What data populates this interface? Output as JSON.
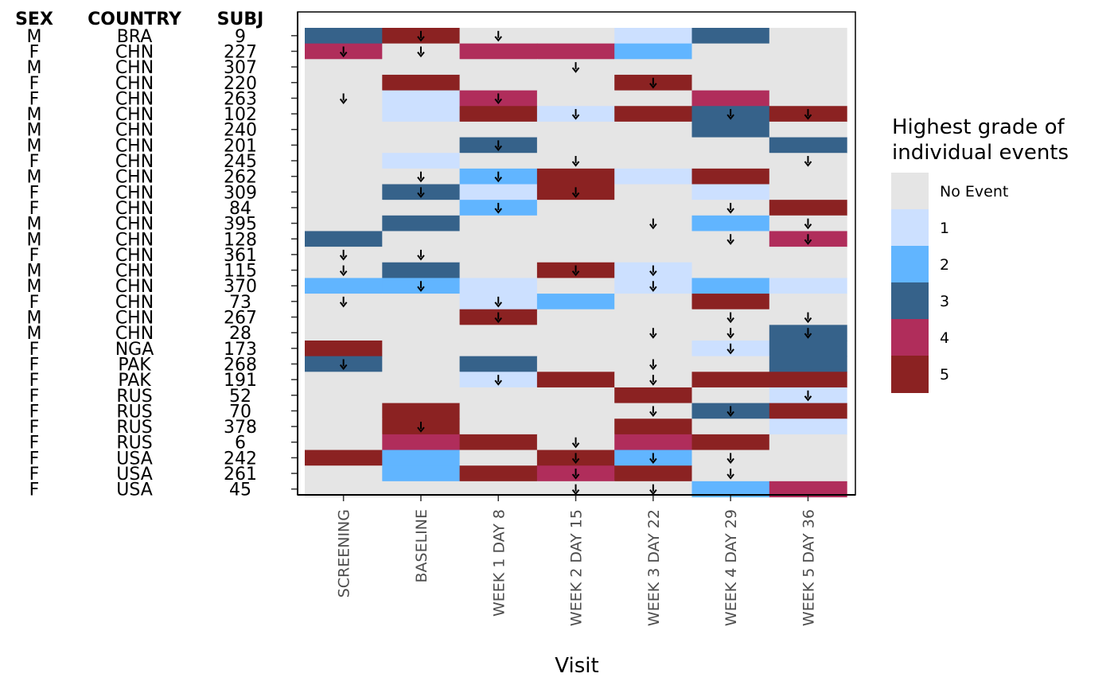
{
  "chart_data": {
    "type": "heatmap",
    "xlabel": "Visit",
    "x_categories": [
      "SCREENING",
      "BASELINE",
      "WEEK 1 DAY 8",
      "WEEK 2 DAY 15",
      "WEEK 3 DAY 22",
      "WEEK 4 DAY 29",
      "WEEK 5 DAY 36"
    ],
    "table_headers": {
      "sex": "SEX",
      "country": "COUNTRY",
      "subject": "SUBJ"
    },
    "rows": [
      {
        "sex": "M",
        "country": "BRA",
        "subject": "9",
        "grades": [
          3,
          5,
          0,
          0,
          1,
          3,
          0
        ],
        "markers": [
          0,
          1,
          1,
          0,
          0,
          0,
          0
        ]
      },
      {
        "sex": "F",
        "country": "CHN",
        "subject": "227",
        "grades": [
          4,
          0,
          4,
          4,
          2,
          0,
          0
        ],
        "markers": [
          1,
          1,
          0,
          0,
          0,
          0,
          0
        ]
      },
      {
        "sex": "M",
        "country": "CHN",
        "subject": "307",
        "grades": [
          0,
          0,
          0,
          0,
          0,
          0,
          0
        ],
        "markers": [
          0,
          0,
          0,
          1,
          0,
          0,
          0
        ]
      },
      {
        "sex": "F",
        "country": "CHN",
        "subject": "220",
        "grades": [
          0,
          5,
          0,
          0,
          5,
          0,
          0
        ],
        "markers": [
          0,
          0,
          0,
          0,
          1,
          0,
          0
        ]
      },
      {
        "sex": "F",
        "country": "CHN",
        "subject": "263",
        "grades": [
          0,
          1,
          4,
          0,
          0,
          4,
          0
        ],
        "markers": [
          1,
          0,
          1,
          0,
          0,
          0,
          0
        ]
      },
      {
        "sex": "M",
        "country": "CHN",
        "subject": "102",
        "grades": [
          0,
          1,
          5,
          1,
          5,
          3,
          5
        ],
        "markers": [
          0,
          0,
          0,
          1,
          0,
          1,
          1
        ]
      },
      {
        "sex": "M",
        "country": "CHN",
        "subject": "240",
        "grades": [
          0,
          0,
          0,
          0,
          0,
          3,
          0
        ],
        "markers": [
          0,
          0,
          0,
          0,
          0,
          0,
          0
        ]
      },
      {
        "sex": "M",
        "country": "CHN",
        "subject": "201",
        "grades": [
          0,
          0,
          3,
          0,
          0,
          0,
          3
        ],
        "markers": [
          0,
          0,
          1,
          0,
          0,
          0,
          0
        ]
      },
      {
        "sex": "F",
        "country": "CHN",
        "subject": "245",
        "grades": [
          0,
          1,
          0,
          0,
          0,
          0,
          0
        ],
        "markers": [
          0,
          0,
          0,
          1,
          0,
          0,
          1
        ]
      },
      {
        "sex": "M",
        "country": "CHN",
        "subject": "262",
        "grades": [
          0,
          0,
          2,
          5,
          1,
          5,
          0
        ],
        "markers": [
          0,
          1,
          1,
          0,
          0,
          0,
          0
        ]
      },
      {
        "sex": "F",
        "country": "CHN",
        "subject": "309",
        "grades": [
          0,
          3,
          1,
          5,
          0,
          1,
          0
        ],
        "markers": [
          0,
          1,
          0,
          1,
          0,
          0,
          0
        ]
      },
      {
        "sex": "F",
        "country": "CHN",
        "subject": "84",
        "grades": [
          0,
          0,
          2,
          0,
          0,
          0,
          5
        ],
        "markers": [
          0,
          0,
          1,
          0,
          0,
          1,
          0
        ]
      },
      {
        "sex": "M",
        "country": "CHN",
        "subject": "395",
        "grades": [
          0,
          3,
          0,
          0,
          0,
          2,
          0
        ],
        "markers": [
          0,
          0,
          0,
          0,
          1,
          0,
          1
        ]
      },
      {
        "sex": "M",
        "country": "CHN",
        "subject": "128",
        "grades": [
          3,
          0,
          0,
          0,
          0,
          0,
          4
        ],
        "markers": [
          0,
          0,
          0,
          0,
          0,
          1,
          1
        ]
      },
      {
        "sex": "F",
        "country": "CHN",
        "subject": "361",
        "grades": [
          0,
          0,
          0,
          0,
          0,
          0,
          0
        ],
        "markers": [
          1,
          1,
          0,
          0,
          0,
          0,
          0
        ]
      },
      {
        "sex": "M",
        "country": "CHN",
        "subject": "115",
        "grades": [
          0,
          3,
          0,
          5,
          1,
          0,
          0
        ],
        "markers": [
          1,
          0,
          0,
          1,
          1,
          0,
          0
        ]
      },
      {
        "sex": "M",
        "country": "CHN",
        "subject": "370",
        "grades": [
          2,
          2,
          1,
          0,
          1,
          2,
          1
        ],
        "markers": [
          0,
          1,
          0,
          0,
          1,
          0,
          0
        ]
      },
      {
        "sex": "F",
        "country": "CHN",
        "subject": "73",
        "grades": [
          0,
          0,
          1,
          2,
          0,
          5,
          0
        ],
        "markers": [
          1,
          0,
          1,
          0,
          0,
          0,
          0
        ]
      },
      {
        "sex": "M",
        "country": "CHN",
        "subject": "267",
        "grades": [
          0,
          0,
          5,
          0,
          0,
          0,
          0
        ],
        "markers": [
          0,
          0,
          1,
          0,
          0,
          1,
          1
        ]
      },
      {
        "sex": "M",
        "country": "CHN",
        "subject": "28",
        "grades": [
          0,
          0,
          0,
          0,
          0,
          0,
          3
        ],
        "markers": [
          0,
          0,
          0,
          0,
          1,
          1,
          1
        ]
      },
      {
        "sex": "F",
        "country": "NGA",
        "subject": "173",
        "grades": [
          5,
          0,
          0,
          0,
          0,
          1,
          3
        ],
        "markers": [
          0,
          0,
          0,
          0,
          0,
          1,
          0
        ]
      },
      {
        "sex": "F",
        "country": "PAK",
        "subject": "268",
        "grades": [
          3,
          0,
          3,
          0,
          0,
          0,
          3
        ],
        "markers": [
          1,
          0,
          0,
          0,
          1,
          0,
          0
        ]
      },
      {
        "sex": "F",
        "country": "PAK",
        "subject": "191",
        "grades": [
          0,
          0,
          1,
          5,
          0,
          5,
          5
        ],
        "markers": [
          0,
          0,
          1,
          0,
          1,
          0,
          0
        ]
      },
      {
        "sex": "F",
        "country": "RUS",
        "subject": "52",
        "grades": [
          0,
          0,
          0,
          0,
          5,
          0,
          1
        ],
        "markers": [
          0,
          0,
          0,
          0,
          0,
          0,
          1
        ]
      },
      {
        "sex": "F",
        "country": "RUS",
        "subject": "70",
        "grades": [
          0,
          5,
          0,
          0,
          0,
          3,
          5
        ],
        "markers": [
          0,
          0,
          0,
          0,
          1,
          1,
          0
        ]
      },
      {
        "sex": "F",
        "country": "RUS",
        "subject": "378",
        "grades": [
          0,
          5,
          0,
          0,
          5,
          0,
          1
        ],
        "markers": [
          0,
          1,
          0,
          0,
          0,
          0,
          0
        ]
      },
      {
        "sex": "F",
        "country": "RUS",
        "subject": "6",
        "grades": [
          0,
          4,
          5,
          0,
          4,
          5,
          0
        ],
        "markers": [
          0,
          0,
          0,
          1,
          0,
          0,
          0
        ]
      },
      {
        "sex": "F",
        "country": "USA",
        "subject": "242",
        "grades": [
          5,
          2,
          0,
          5,
          2,
          0,
          0
        ],
        "markers": [
          0,
          0,
          0,
          1,
          1,
          1,
          0
        ]
      },
      {
        "sex": "F",
        "country": "USA",
        "subject": "261",
        "grades": [
          0,
          2,
          5,
          4,
          5,
          0,
          0
        ],
        "markers": [
          0,
          0,
          0,
          1,
          0,
          1,
          0
        ]
      },
      {
        "sex": "F",
        "country": "USA",
        "subject": "45",
        "grades": [
          0,
          0,
          0,
          0,
          0,
          2,
          4
        ],
        "markers": [
          0,
          0,
          0,
          1,
          1,
          0,
          0
        ]
      }
    ],
    "legend": {
      "title_lines": [
        "Highest grade of",
        "individual events"
      ],
      "placement": "right",
      "items": [
        {
          "label": "No Event",
          "grade": 0,
          "color": "#e5e5e5"
        },
        {
          "label": "1",
          "grade": 1,
          "color": "#cce0ff"
        },
        {
          "label": "2",
          "grade": 2,
          "color": "#61b5ff"
        },
        {
          "label": "3",
          "grade": 3,
          "color": "#36628a"
        },
        {
          "label": "4",
          "grade": 4,
          "color": "#b02d5b"
        },
        {
          "label": "5",
          "grade": 5,
          "color": "#8b2222"
        }
      ]
    },
    "grid": false
  }
}
